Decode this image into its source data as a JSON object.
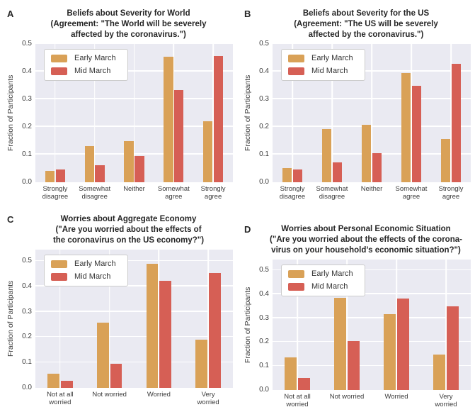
{
  "palette": {
    "series_colors": [
      "#d9a157",
      "#d65f55"
    ],
    "plot_background": "#eaeaf2",
    "gridline": "#ffffff",
    "figure_background": "#ffffff",
    "title_text": "#262626",
    "tick_text": "#3a3a3a",
    "legend_background": "#ffffff",
    "legend_border": "#cccccc"
  },
  "legend": {
    "items": [
      "Early March",
      "Mid March"
    ]
  },
  "chart_data": [
    {
      "panel": "A",
      "type": "bar",
      "title": "Beliefs about Severity for World (Agreement: \"The World will be severely affected by the coronavirus.\")",
      "title_lines": [
        "Beliefs about Severity for World",
        "(Agreement: \"The World will be severely",
        "affected by the coronavirus.\")"
      ],
      "categories": [
        "Strongly\ndisagree",
        "Somewhat\ndisagree",
        "Neither",
        "Somewhat\nagree",
        "Strongly\nagree"
      ],
      "series": [
        {
          "name": "Early March",
          "values": [
            0.041,
            0.13,
            0.15,
            0.454,
            0.22
          ]
        },
        {
          "name": "Mid March",
          "values": [
            0.047,
            0.061,
            0.096,
            0.334,
            0.457
          ]
        }
      ],
      "xlabel": "",
      "ylabel": "Fraction of Participants",
      "ylim": [
        0,
        0.5
      ],
      "yticks": [
        0.0,
        0.1,
        0.2,
        0.3,
        0.4,
        0.5
      ],
      "ytick_labels": [
        "0.0",
        "0.1",
        "0.2",
        "0.3",
        "0.4",
        "0.5"
      ],
      "grid": true,
      "legend_position": "upper left"
    },
    {
      "panel": "B",
      "type": "bar",
      "title": "Beliefs about Severity for the US (Agreement: \"The US will be severely affected by the coronavirus.\")",
      "title_lines": [
        "Beliefs about Severity for the US",
        "(Agreement: \"The US will be severely",
        "affected by the coronavirus.\")"
      ],
      "categories": [
        "Strongly\ndisagree",
        "Somewhat\ndisagree",
        "Neither",
        "Somewhat\nagree",
        "Strongly\nagree"
      ],
      "series": [
        {
          "name": "Early March",
          "values": [
            0.051,
            0.192,
            0.207,
            0.395,
            0.157
          ]
        },
        {
          "name": "Mid March",
          "values": [
            0.047,
            0.072,
            0.106,
            0.35,
            0.427
          ]
        }
      ],
      "xlabel": "",
      "ylabel": "Fraction of Participants",
      "ylim": [
        0,
        0.5
      ],
      "yticks": [
        0.0,
        0.1,
        0.2,
        0.3,
        0.4,
        0.5
      ],
      "ytick_labels": [
        "0.0",
        "0.1",
        "0.2",
        "0.3",
        "0.4",
        "0.5"
      ],
      "grid": true,
      "legend_position": "upper left"
    },
    {
      "panel": "C",
      "type": "bar",
      "title": "Worries about Aggregate Economy (\"Are you worried about the effects of the coronavirus on the US economy?\")",
      "title_lines": [
        "Worries about Aggregate Economy",
        "(\"Are you worried about the effects of",
        "the coronavirus on the US economy?\")"
      ],
      "categories": [
        "Not at all\nworried",
        "Not worried",
        "Worried",
        "Very\nworried"
      ],
      "series": [
        {
          "name": "Early March",
          "values": [
            0.057,
            0.258,
            0.489,
            0.191
          ]
        },
        {
          "name": "Mid March",
          "values": [
            0.029,
            0.096,
            0.421,
            0.452
          ]
        }
      ],
      "xlabel": "",
      "ylabel": "Fraction of Participants",
      "ylim": [
        0,
        0.545
      ],
      "yticks": [
        0.0,
        0.1,
        0.2,
        0.3,
        0.4,
        0.5
      ],
      "ytick_labels": [
        "0.0",
        "0.1",
        "0.2",
        "0.3",
        "0.4",
        "0.5"
      ],
      "grid": true,
      "legend_position": "upper left"
    },
    {
      "panel": "D",
      "type": "bar",
      "title": "Worries about Personal Economic Situation (\"Are you worried about the effects of the corona-virus on your household’s economic situation?\")",
      "title_lines": [
        "Worries about Personal Economic Situation",
        "(\"Are you worried about the effects of the corona-",
        "virus on your household’s economic situation?\")"
      ],
      "categories": [
        "Not at all\nworried",
        "Not worried",
        "Worried",
        "Very\nworried"
      ],
      "series": [
        {
          "name": "Early March",
          "values": [
            0.137,
            0.385,
            0.316,
            0.148
          ]
        },
        {
          "name": "Mid March",
          "values": [
            0.05,
            0.205,
            0.381,
            0.351
          ]
        }
      ],
      "xlabel": "",
      "ylabel": "Fraction of Participants",
      "ylim": [
        0,
        0.545
      ],
      "yticks": [
        0.0,
        0.1,
        0.2,
        0.3,
        0.4,
        0.5
      ],
      "ytick_labels": [
        "0.0",
        "0.1",
        "0.2",
        "0.3",
        "0.4",
        "0.5"
      ],
      "grid": true,
      "legend_position": "upper left"
    }
  ]
}
